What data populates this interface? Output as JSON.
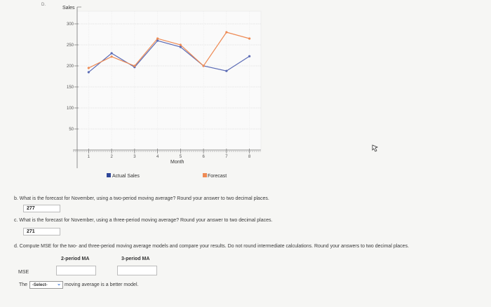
{
  "top_label": "D.",
  "chart_data": {
    "type": "line",
    "ylabel": "Sales",
    "xlabel": "Month",
    "x": [
      1,
      2,
      3,
      4,
      5,
      6,
      7,
      8
    ],
    "x_tick_labels": [
      "1",
      "2",
      "3",
      "4",
      "5",
      "6",
      "7",
      "8"
    ],
    "ylim": [
      0,
      330
    ],
    "y_ticks": [
      50,
      100,
      150,
      200,
      250,
      300
    ],
    "y_tick_labels": [
      "50",
      "100",
      "150",
      "200",
      "250",
      "300"
    ],
    "grid": true,
    "legend_placement": "bottom",
    "series": [
      {
        "name": "Actual Sales",
        "color": "#5b6bb5",
        "x": [
          1,
          2,
          3,
          4,
          5,
          6,
          7,
          8
        ],
        "values": [
          185,
          230,
          197,
          260,
          245,
          200,
          188,
          223
        ]
      },
      {
        "name": "Forecast",
        "color": "#ee8b55",
        "x": [
          1,
          2,
          3,
          4,
          5,
          6,
          7,
          8
        ],
        "values": [
          195,
          222,
          200,
          265,
          250,
          200,
          280,
          265
        ]
      }
    ]
  },
  "legend": {
    "actual": "Actual Sales",
    "forecast": "Forecast"
  },
  "questions": {
    "b": {
      "text": "b. What is the forecast for November, using a two-period moving average? Round your answer to two decimal places.",
      "answer": "277"
    },
    "c": {
      "text": "c. What is the forecast for November, using a three-period moving average? Round your answer to two decimal places.",
      "answer": "271"
    },
    "d": {
      "text": "d. Compute MSE for the two- and three-period moving average models and compare your results. Do not round intermediate calculations. Round your answers to two decimal places.",
      "col1": "2-period MA",
      "col2": "3-period MA",
      "row_label": "MSE",
      "mse_2": "",
      "mse_3": "",
      "sentence_prefix": "The",
      "select_value": "-Select-",
      "sentence_suffix": "moving average is a better model."
    }
  },
  "colors": {
    "actual": "#5b6bb5",
    "forecast": "#ee8b55",
    "grid": "#e3e3e3",
    "axis": "#777777"
  }
}
